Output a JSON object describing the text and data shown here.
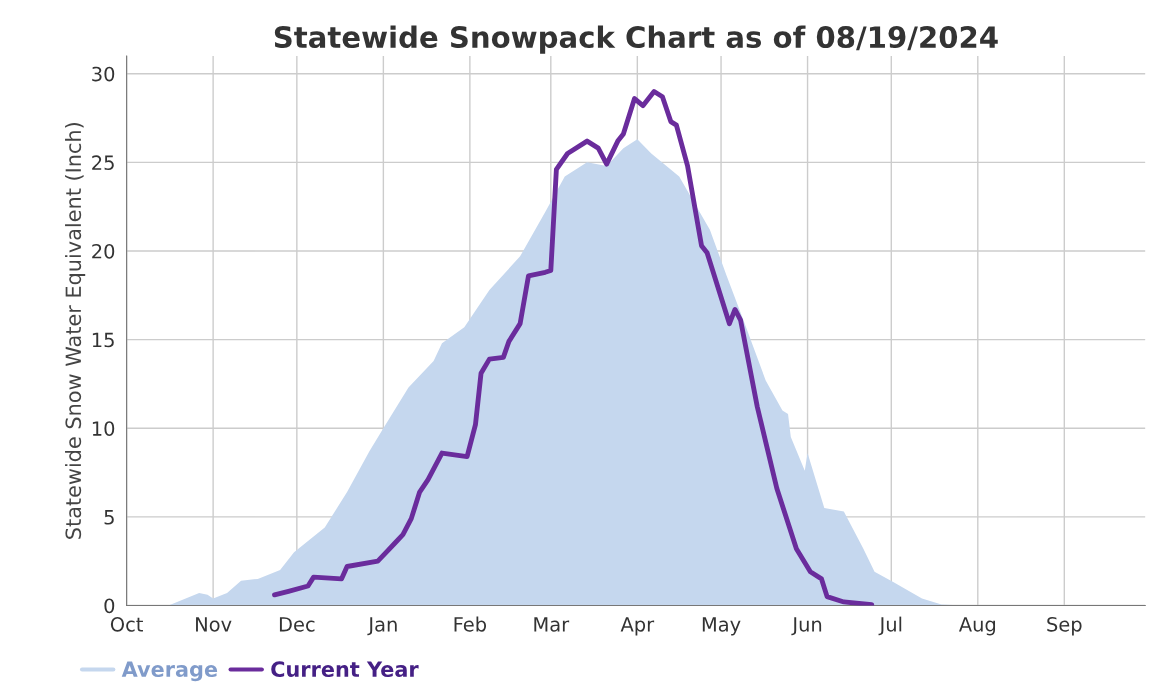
{
  "chart_data": {
    "type": "line",
    "title": "Statewide Snowpack Chart as of 08/19/2024",
    "ylabel": "Statewide Snow Water Equivalent (Inch)",
    "xlim": [
      "2023-10-01",
      "2024-09-30"
    ],
    "xticks": [
      {
        "value": "2023-10-01",
        "label": "Oct"
      },
      {
        "value": "2023-11-01",
        "label": "Nov"
      },
      {
        "value": "2023-12-01",
        "label": "Dec"
      },
      {
        "value": "2024-01-01",
        "label": "Jan"
      },
      {
        "value": "2024-02-01",
        "label": "Feb"
      },
      {
        "value": "2024-03-01",
        "label": "Mar"
      },
      {
        "value": "2024-04-01",
        "label": "Apr"
      },
      {
        "value": "2024-05-01",
        "label": "May"
      },
      {
        "value": "2024-06-01",
        "label": "Jun"
      },
      {
        "value": "2024-07-01",
        "label": "Jul"
      },
      {
        "value": "2024-08-01",
        "label": "Aug"
      },
      {
        "value": "2024-09-01",
        "label": "Sep"
      }
    ],
    "ylim": [
      0,
      31
    ],
    "yticks": [
      0,
      5,
      10,
      15,
      20,
      25,
      30
    ],
    "grid": true,
    "legend": "bottom left",
    "line_style": "solid",
    "marker": "none",
    "series": [
      {
        "name": "Average",
        "type": "area",
        "color": "#c5d7ee",
        "x": [
          "2023-10-01",
          "2023-10-16",
          "2023-10-27",
          "2023-10-30",
          "2023-11-01",
          "2023-11-06",
          "2023-11-11",
          "2023-11-17",
          "2023-11-25",
          "2023-11-30",
          "2023-12-11",
          "2023-12-19",
          "2023-12-27",
          "2024-01-01",
          "2024-01-10",
          "2024-01-19",
          "2024-01-22",
          "2024-01-30",
          "2024-02-08",
          "2024-02-19",
          "2024-02-28",
          "2024-03-06",
          "2024-03-14",
          "2024-03-21",
          "2024-03-27",
          "2024-04-01",
          "2024-04-06",
          "2024-04-16",
          "2024-04-27",
          "2024-05-03",
          "2024-05-09",
          "2024-05-17",
          "2024-05-23",
          "2024-05-25",
          "2024-05-26",
          "2024-05-31",
          "2024-06-01",
          "2024-06-07",
          "2024-06-14",
          "2024-06-21",
          "2024-06-25",
          "2024-07-02",
          "2024-07-12",
          "2024-07-19",
          "2024-07-27",
          "2024-09-30"
        ],
        "values": [
          0,
          0,
          0.7,
          0.6,
          0.4,
          0.7,
          1.4,
          1.5,
          2.0,
          3.0,
          4.4,
          6.4,
          8.7,
          10.0,
          12.3,
          13.8,
          14.8,
          15.7,
          17.8,
          19.7,
          22.2,
          24.2,
          25.0,
          24.8,
          25.8,
          26.3,
          25.5,
          24.2,
          21.2,
          18.6,
          16.1,
          12.7,
          11.0,
          10.8,
          9.5,
          7.6,
          8.6,
          5.5,
          5.3,
          3.2,
          1.9,
          1.3,
          0.4,
          0.05,
          0,
          0
        ]
      },
      {
        "name": "Current Year",
        "color": "#6a2c9c",
        "x": [
          "2023-11-23",
          "2023-11-28",
          "2023-12-05",
          "2023-12-07",
          "2023-12-17",
          "2023-12-19",
          "2023-12-30",
          "2024-01-02",
          "2024-01-05",
          "2024-01-08",
          "2024-01-11",
          "2024-01-14",
          "2024-01-17",
          "2024-01-22",
          "2024-01-31",
          "2024-02-03",
          "2024-02-05",
          "2024-02-08",
          "2024-02-13",
          "2024-02-15",
          "2024-02-19",
          "2024-02-22",
          "2024-02-28",
          "2024-03-01",
          "2024-03-03",
          "2024-03-07",
          "2024-03-14",
          "2024-03-18",
          "2024-03-21",
          "2024-03-25",
          "2024-03-27",
          "2024-03-31",
          "2024-04-03",
          "2024-04-07",
          "2024-04-10",
          "2024-04-13",
          "2024-04-15",
          "2024-04-19",
          "2024-04-24",
          "2024-04-26",
          "2024-05-04",
          "2024-05-06",
          "2024-05-08",
          "2024-05-14",
          "2024-05-21",
          "2024-05-28",
          "2024-06-02",
          "2024-06-06",
          "2024-06-08",
          "2024-06-14",
          "2024-06-24"
        ],
        "values": [
          0.6,
          0.8,
          1.1,
          1.6,
          1.5,
          2.2,
          2.5,
          3.0,
          3.5,
          4.0,
          4.9,
          6.4,
          7.1,
          8.6,
          8.4,
          10.2,
          13.1,
          13.9,
          14.0,
          14.9,
          15.9,
          18.6,
          18.8,
          18.9,
          24.6,
          25.5,
          26.2,
          25.8,
          24.9,
          26.2,
          26.6,
          28.6,
          28.2,
          29.0,
          28.7,
          27.3,
          27.1,
          24.8,
          20.3,
          19.9,
          15.9,
          16.7,
          16.1,
          11.2,
          6.6,
          3.2,
          1.9,
          1.5,
          0.5,
          0.2,
          0.04
        ]
      }
    ]
  }
}
